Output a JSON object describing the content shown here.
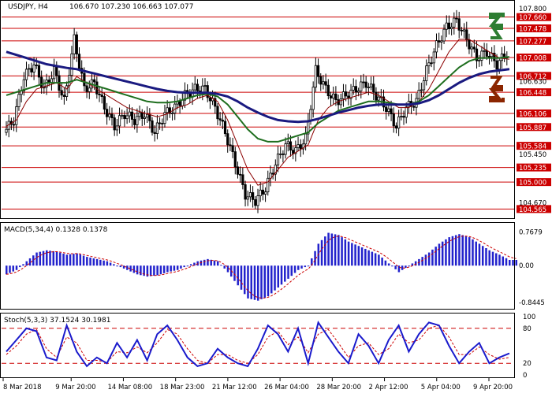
{
  "header": {
    "symbol_timeframe": "USDJPY, H4",
    "quote": "106.670 107.230 106.663 107.077"
  },
  "colors": {
    "background": "#ffffff",
    "candle": "#000000",
    "level_line": "#cc0000",
    "level_label_bg": "#cc0000",
    "level_label_text": "#ffffff",
    "ma_fast": "#8b0000",
    "ma_mid": "#1e6e1e",
    "ma_slow": "#1a1a80",
    "macd_hist": "#2222cc",
    "macd_signal": "#cc0000",
    "stoch_main": "#1a1acc",
    "stoch_signal": "#cc0000",
    "arrow_up": "#2e7d32",
    "arrow_down": "#8b2500"
  },
  "chart_data": [
    {
      "type": "candlestick",
      "title": "USDJPY, H4",
      "ylim": [
        104.43,
        107.91
      ],
      "price_labels": [
        "107.800",
        "107.660",
        "107.478",
        "107.277",
        "107.008",
        "106.712",
        "106.630",
        "106.448",
        "106.106",
        "105.887",
        "105.584",
        "105.450",
        "105.235",
        "105.000",
        "104.670",
        "104.565"
      ],
      "levels": [
        107.66,
        107.478,
        107.277,
        107.008,
        106.712,
        106.448,
        106.106,
        105.887,
        105.584,
        105.235,
        105.0,
        104.565
      ],
      "x_labels": [
        "8 Mar 2018",
        "9 Mar 20:00",
        "14 Mar 08:00",
        "18 Mar 23:00",
        "21 Mar 12:00",
        "26 Mar 04:00",
        "28 Mar 20:00",
        "2 Apr 12:00",
        "5 Apr 04:00",
        "9 Apr 20:00"
      ],
      "close_path": [
        105.8,
        106.0,
        106.7,
        106.9,
        106.5,
        106.8,
        106.3,
        107.3,
        106.5,
        106.6,
        106.2,
        105.9,
        106.1,
        106.0,
        106.1,
        105.8,
        106.1,
        106.2,
        106.4,
        106.5,
        106.5,
        106.2,
        105.8,
        105.3,
        104.8,
        104.7,
        104.9,
        105.3,
        105.6,
        105.5,
        105.7,
        106.8,
        106.5,
        106.3,
        106.4,
        106.5,
        106.6,
        106.4,
        106.2,
        105.9,
        106.2,
        106.3,
        106.8,
        107.2,
        107.5,
        107.6,
        107.3,
        107.0,
        107.1,
        106.9,
        107.08
      ],
      "moving_averages": [
        {
          "values": [
            105.9,
            106.0,
            106.3,
            106.5,
            106.55,
            106.6,
            106.5,
            106.7,
            106.6,
            106.5,
            106.4,
            106.3,
            106.2,
            106.15,
            106.1,
            106.05,
            106.1,
            106.2,
            106.25,
            106.35,
            106.4,
            106.3,
            106.0,
            105.6,
            105.2,
            104.95,
            105.0,
            105.2,
            105.4,
            105.5,
            105.6,
            106.0,
            106.2,
            106.3,
            106.35,
            106.4,
            106.45,
            106.4,
            106.3,
            106.2,
            106.2,
            106.3,
            106.5,
            106.8,
            107.1,
            107.3,
            107.3,
            107.2,
            107.1,
            107.0,
            106.98
          ]
        },
        {
          "values": [
            106.4,
            106.45,
            106.5,
            106.55,
            106.6,
            106.6,
            106.6,
            106.65,
            106.6,
            106.55,
            106.5,
            106.45,
            106.4,
            106.35,
            106.3,
            106.28,
            106.28,
            106.3,
            106.35,
            106.4,
            106.42,
            106.38,
            106.25,
            106.05,
            105.85,
            105.7,
            105.65,
            105.65,
            105.7,
            105.75,
            105.8,
            105.95,
            106.05,
            106.15,
            106.2,
            106.25,
            106.3,
            106.3,
            106.28,
            106.25,
            106.25,
            106.3,
            106.4,
            106.55,
            106.7,
            106.85,
            106.95,
            107.0,
            107.0,
            107.0,
            107.02
          ]
        },
        {
          "values": [
            107.1,
            107.05,
            107.0,
            106.95,
            106.9,
            106.87,
            106.84,
            106.82,
            106.78,
            106.74,
            106.7,
            106.66,
            106.62,
            106.58,
            106.54,
            106.5,
            106.47,
            106.45,
            106.44,
            106.44,
            106.44,
            106.42,
            106.38,
            106.3,
            106.2,
            106.12,
            106.05,
            106.0,
            105.98,
            105.97,
            105.98,
            106.02,
            106.07,
            106.12,
            106.16,
            106.2,
            106.23,
            106.25,
            106.25,
            106.25,
            106.25,
            106.27,
            106.32,
            106.4,
            106.5,
            106.6,
            106.68,
            106.74,
            106.78,
            106.8,
            106.82
          ]
        }
      ]
    },
    {
      "type": "bar",
      "title": "MACD(5,34,4) 0.1328 0.1378",
      "ylim": [
        -0.95,
        0.85
      ],
      "tick_labels": [
        "0.7679",
        "0.00",
        "-0.8445"
      ],
      "histogram": [
        -0.2,
        -0.1,
        0.1,
        0.3,
        0.35,
        0.32,
        0.25,
        0.28,
        0.2,
        0.15,
        0.1,
        0.0,
        -0.1,
        -0.2,
        -0.25,
        -0.22,
        -0.15,
        -0.1,
        0.0,
        0.1,
        0.15,
        0.1,
        -0.15,
        -0.45,
        -0.75,
        -0.8,
        -0.7,
        -0.5,
        -0.3,
        -0.1,
        0.0,
        0.5,
        0.75,
        0.7,
        0.55,
        0.45,
        0.35,
        0.25,
        0.05,
        -0.15,
        0.0,
        0.15,
        0.3,
        0.5,
        0.65,
        0.72,
        0.65,
        0.5,
        0.35,
        0.25,
        0.13
      ]
    },
    {
      "type": "line",
      "title": "Stoch(5,3,3) 37.1524 30.1981",
      "ylim": [
        0,
        100
      ],
      "tick_labels": [
        "100",
        "80",
        "20",
        "0"
      ],
      "levels": [
        80,
        20
      ],
      "main": [
        40,
        60,
        80,
        75,
        30,
        25,
        85,
        40,
        15,
        30,
        20,
        55,
        30,
        60,
        25,
        70,
        85,
        60,
        30,
        15,
        20,
        45,
        30,
        20,
        15,
        45,
        85,
        70,
        40,
        80,
        20,
        90,
        65,
        40,
        20,
        70,
        50,
        20,
        60,
        85,
        40,
        70,
        90,
        85,
        50,
        20,
        40,
        55,
        20,
        30,
        37
      ],
      "signal": [
        35,
        50,
        70,
        78,
        45,
        30,
        65,
        55,
        25,
        25,
        22,
        40,
        38,
        48,
        38,
        55,
        78,
        70,
        45,
        25,
        20,
        35,
        35,
        25,
        20,
        35,
        65,
        75,
        52,
        65,
        38,
        70,
        78,
        55,
        30,
        50,
        55,
        35,
        45,
        70,
        55,
        60,
        80,
        85,
        65,
        35,
        35,
        48,
        35,
        27,
        30
      ]
    }
  ]
}
